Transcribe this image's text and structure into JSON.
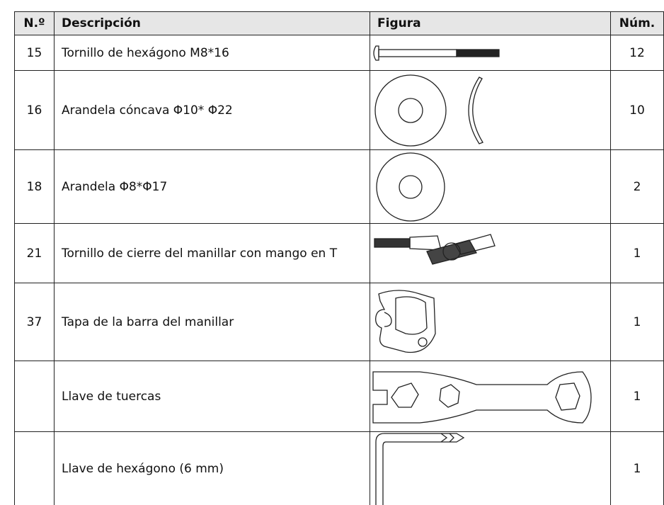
{
  "table": {
    "header": [
      "N.º",
      "Descripción",
      "Figura",
      "Núm."
    ],
    "rows": [
      {
        "no": "15",
        "description": "Tornillo de hexágono M8*16",
        "qty": "12"
      },
      {
        "no": "16",
        "description": "Arandela cóncava Φ10* Φ22",
        "qty": "10"
      },
      {
        "no": "18",
        "description": "Arandela Φ8*Φ17",
        "qty": "2"
      },
      {
        "no": "21",
        "description": "Tornillo de cierre del manillar con mango en T",
        "qty": "1"
      },
      {
        "no": "37",
        "description": "Tapa de la barra del manillar",
        "qty": "1"
      },
      {
        "description": "Llave de tuercas",
        "qty": "1"
      },
      {
        "description": "Llave de hexágono (6 mm)",
        "qty": "1"
      }
    ]
  }
}
